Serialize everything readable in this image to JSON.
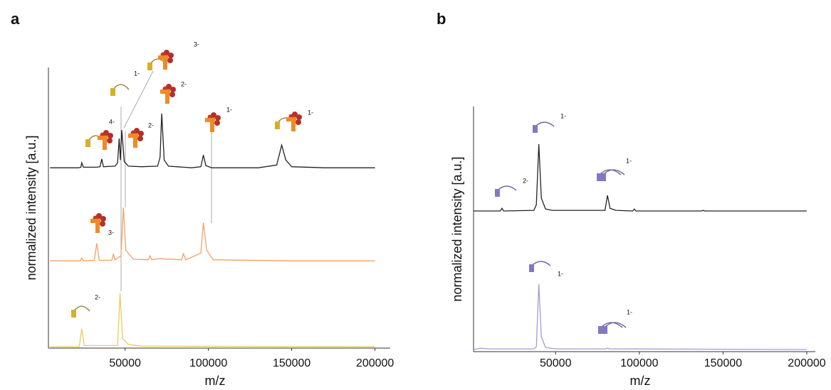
{
  "chart_data": [
    {
      "type": "line",
      "title": "a",
      "x_label": "m/z",
      "y_label": "normalized intensity [a.u.]",
      "xlim": [
        4000,
        204000
      ],
      "ylim": [
        0,
        1
      ],
      "xticks": [
        50000,
        100000,
        150000,
        200000
      ],
      "series": [
        {
          "color": "#222222",
          "x": [
            5000,
            22000,
            23500,
            24000,
            25000,
            33000,
            35000,
            36000,
            37000,
            44000,
            45500,
            46500,
            47200,
            48000,
            49500,
            52000,
            60000,
            69500,
            71000,
            72000,
            73500,
            76000,
            90000,
            95500,
            97000,
            98500,
            102000,
            130000,
            141000,
            144000,
            146500,
            150000,
            170000,
            200000
          ],
          "values": [
            0.01,
            0.01,
            0.02,
            0.1,
            0.02,
            0.02,
            0.03,
            0.17,
            0.03,
            0.04,
            0.1,
            0.54,
            0.15,
            0.69,
            0.12,
            0.04,
            0.03,
            0.04,
            0.2,
            0.99,
            0.15,
            0.04,
            0.01,
            0.03,
            0.24,
            0.05,
            0.01,
            0.01,
            0.06,
            0.42,
            0.15,
            0.03,
            0.01,
            0.01
          ]
        },
        {
          "color": "#f4a062",
          "x": [
            5000,
            23000,
            24000,
            25000,
            31500,
            33000,
            34500,
            42000,
            43000,
            44000,
            47500,
            49000,
            50500,
            55000,
            64000,
            65000,
            66000,
            70000,
            84000,
            85000,
            86500,
            95500,
            97000,
            99000,
            103000,
            150000,
            200000
          ],
          "values": [
            0.01,
            0.01,
            0.06,
            0.01,
            0.02,
            0.33,
            0.02,
            0.02,
            0.13,
            0.03,
            0.1,
            0.97,
            0.2,
            0.04,
            0.03,
            0.1,
            0.03,
            0.05,
            0.03,
            0.14,
            0.03,
            0.15,
            0.7,
            0.2,
            0.03,
            0.01,
            0.01
          ]
        },
        {
          "color": "#e8cc5a",
          "x": [
            5000,
            22500,
            24000,
            25500,
            45500,
            47000,
            48500,
            52000,
            60000,
            200000
          ],
          "values": [
            0,
            0,
            0.32,
            0.02,
            0.02,
            0.96,
            0.15,
            0.04,
            0.01,
            0
          ]
        }
      ],
      "annotations": [
        {
          "text": "3-",
          "x": 48000,
          "series": 0
        },
        {
          "text": "1-",
          "x": 47000,
          "series": 0
        },
        {
          "text": "4-",
          "x": 46500,
          "series": 0
        },
        {
          "text": "2-",
          "x": 49000,
          "series": 0
        },
        {
          "text": "2-",
          "x": 72000,
          "series": 0
        },
        {
          "text": "1-",
          "x": 97000,
          "series": 0
        },
        {
          "text": "1-",
          "x": 144000,
          "series": 0
        },
        {
          "text": "3-",
          "x": 33000,
          "series": 1
        },
        {
          "text": "2-",
          "x": 24000,
          "series": 2
        }
      ]
    },
    {
      "type": "line",
      "title": "b",
      "x_label": "m/z",
      "y_label": "normalized intensity [a.u.]",
      "xlim": [
        1000,
        200000
      ],
      "ylim": [
        0,
        1
      ],
      "xticks": [
        50000,
        100000,
        150000,
        200000
      ],
      "series": [
        {
          "color": "#222222",
          "x": [
            1000,
            17000,
            18000,
            19000,
            37000,
            38500,
            40000,
            41500,
            44000,
            48000,
            79500,
            81000,
            82500,
            86000,
            96000,
            97000,
            98000,
            137000,
            138000,
            139000,
            200000
          ],
          "values": [
            0.01,
            0.01,
            0.05,
            0.01,
            0.02,
            0.1,
            0.99,
            0.2,
            0.04,
            0.02,
            0.02,
            0.24,
            0.05,
            0.02,
            0.01,
            0.04,
            0.01,
            0.01,
            0.02,
            0.01,
            0.01
          ]
        },
        {
          "color": "#a49bcf",
          "x": [
            1000,
            5000,
            10000,
            20000,
            37000,
            38500,
            40000,
            41500,
            44000,
            50000,
            80000,
            81000,
            82000,
            200000
          ],
          "values": [
            0.01,
            0.03,
            0.02,
            0.02,
            0.02,
            0.05,
            0.97,
            0.2,
            0.04,
            0.02,
            0.02,
            0.03,
            0.02,
            0.01
          ]
        }
      ],
      "annotations": [
        {
          "text": "1-",
          "x": 40000,
          "series": 0
        },
        {
          "text": "2-",
          "x": 18000,
          "series": 0
        },
        {
          "text": "1-",
          "x": 81000,
          "series": 0
        },
        {
          "text": "1-",
          "x": 40000,
          "series": 1
        },
        {
          "text": "1-",
          "x": 81000,
          "series": 1
        }
      ]
    }
  ]
}
